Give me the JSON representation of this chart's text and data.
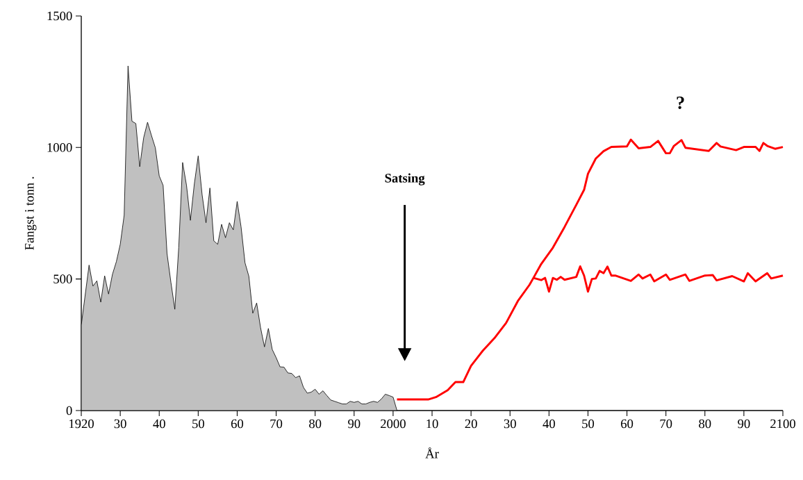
{
  "chart_data": {
    "type": "line",
    "xlabel": "År",
    "ylabel": "Fangst i tonn  .",
    "xlim": [
      1920,
      2100
    ],
    "ylim": [
      0,
      1500
    ],
    "xticks": [
      1920,
      {
        "value": 1930,
        "label": "30"
      },
      {
        "value": 1940,
        "label": "40"
      },
      {
        "value": 1950,
        "label": "50"
      },
      {
        "value": 1960,
        "label": "60"
      },
      {
        "value": 1970,
        "label": "70"
      },
      {
        "value": 1980,
        "label": "80"
      },
      {
        "value": 1990,
        "label": "90"
      },
      2000,
      {
        "value": 2010,
        "label": "10"
      },
      {
        "value": 2020,
        "label": "20"
      },
      {
        "value": 2030,
        "label": "30"
      },
      {
        "value": 2040,
        "label": "40"
      },
      {
        "value": 2050,
        "label": "50"
      },
      {
        "value": 2060,
        "label": "60"
      },
      {
        "value": 2070,
        "label": "70"
      },
      {
        "value": 2080,
        "label": "80"
      },
      {
        "value": 2090,
        "label": "90"
      },
      2100
    ],
    "yticks": [
      0,
      500,
      1000,
      1500
    ],
    "annotations": [
      "Satsing",
      "?"
    ],
    "series": [
      {
        "type": "area",
        "color": "#c0c0c0",
        "x": [
          1920,
          1922,
          1923,
          1924,
          1925,
          1926,
          1927,
          1928,
          1929,
          1930,
          1931,
          1932,
          1933,
          1934,
          1935,
          1936,
          1937,
          1938,
          1939,
          1940,
          1941,
          1942,
          1943,
          1944,
          1945,
          1946,
          1947,
          1948,
          1949,
          1950,
          1951,
          1952,
          1953,
          1954,
          1955,
          1956,
          1957,
          1958,
          1959,
          1960,
          1961,
          1962,
          1963,
          1964,
          1965,
          1966,
          1967,
          1968,
          1969,
          1970,
          1971,
          1972,
          1973,
          1974,
          1975,
          1976,
          1977,
          1978,
          1979,
          1980,
          1981,
          1982,
          1983,
          1984,
          1985,
          1986,
          1987,
          1988,
          1989,
          1990,
          1991,
          1992,
          1993,
          1994,
          1995,
          1996,
          1997,
          1998,
          1999,
          2000,
          2001
        ],
        "values": [
          325,
          553,
          473,
          493,
          412,
          512,
          443,
          518,
          566,
          632,
          742,
          1310,
          1100,
          1091,
          927,
          1037,
          1096,
          1046,
          999,
          892,
          856,
          597,
          487,
          385,
          619,
          943,
          856,
          723,
          861,
          968,
          821,
          714,
          846,
          645,
          632,
          708,
          657,
          714,
          687,
          795,
          698,
          562,
          510,
          370,
          409,
          315,
          242,
          312,
          232,
          201,
          166,
          165,
          143,
          141,
          125,
          132,
          88,
          66,
          70,
          81,
          62,
          75,
          57,
          40,
          35,
          30,
          25,
          25,
          35,
          31,
          35,
          25,
          25,
          31,
          35,
          31,
          44,
          62,
          57,
          51,
          0
        ]
      },
      {
        "color": "#ff0000",
        "x": [
          2001,
          2009,
          2011,
          2014,
          2016,
          2018,
          2020,
          2023,
          2026,
          2029,
          2032,
          2035,
          2036,
          2038,
          2041,
          2044,
          2047,
          2049,
          2050,
          2052,
          2054,
          2056,
          2060,
          2061,
          2063,
          2066,
          2068,
          2070,
          2071,
          2072,
          2074,
          2075,
          2081,
          2083,
          2084,
          2088,
          2090,
          2093,
          2094,
          2095,
          2096,
          2098,
          2100
        ],
        "values": [
          42,
          42,
          51,
          77,
          108,
          108,
          170,
          227,
          275,
          333,
          416,
          478,
          504,
          557,
          619,
          698,
          782,
          839,
          900,
          958,
          986,
          1002,
          1004,
          1030,
          997,
          1002,
          1025,
          978,
          978,
          1005,
          1028,
          999,
          987,
          1017,
          1004,
          990,
          1002,
          1002,
          987,
          1017,
          1006,
          995,
          1002
        ]
      },
      {
        "color": "#ff0000",
        "x": [
          2036,
          2038,
          2039,
          2040,
          2041,
          2042,
          2043,
          2044,
          2047,
          2048,
          2049,
          2050,
          2051,
          2052,
          2053,
          2054,
          2055,
          2056,
          2057,
          2061,
          2063,
          2064,
          2066,
          2067,
          2070,
          2071,
          2075,
          2076,
          2080,
          2082,
          2083,
          2087,
          2090,
          2091,
          2093,
          2096,
          2097,
          2100
        ],
        "values": [
          504,
          496,
          504,
          452,
          504,
          497,
          508,
          497,
          508,
          548,
          513,
          452,
          500,
          502,
          531,
          522,
          547,
          513,
          513,
          493,
          517,
          502,
          517,
          491,
          517,
          497,
          517,
          493,
          513,
          515,
          495,
          511,
          491,
          522,
          491,
          522,
          502,
          513
        ]
      }
    ]
  }
}
